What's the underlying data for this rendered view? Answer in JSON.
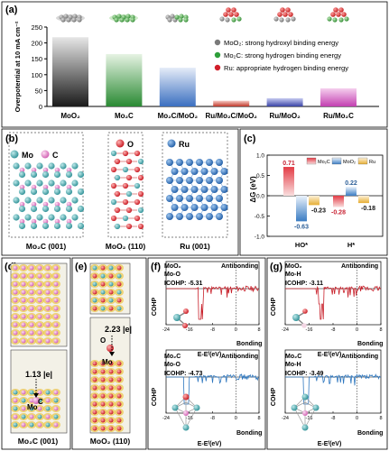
{
  "panel_a": {
    "label": "(a)",
    "ylabel": "Overpotential at 10 mA cm⁻²",
    "yticks": [
      "0",
      "50",
      "100",
      "150",
      "200",
      "250"
    ],
    "legend": [
      {
        "text": "MoO₂: strong hydroxyl binding energy",
        "color": "#7a7a7a"
      },
      {
        "text": "Mo₂C: strong hydrogen binding energy",
        "color": "#2e9e3a"
      },
      {
        "text": "Ru: appropriate hydrogen binding energy",
        "color": "#d11f2a"
      }
    ]
  },
  "chart_data": [
    {
      "type": "bar",
      "categories": [
        "MoO₂",
        "Mo₂C",
        "Mo₂C/MoO₂",
        "Ru/Mo₂C/MoO₂",
        "Ru/MoO₂",
        "Ru/Mo₂C"
      ],
      "values": [
        218,
        165,
        122,
        18,
        26,
        57
      ],
      "ylabel": "Overpotential at 10 mA cm⁻²",
      "ylim": [
        0,
        250
      ],
      "colors": [
        "#1f1f1f",
        "#2f8a35",
        "#3f73c0",
        "#c0392b",
        "#3e47a8",
        "#c744b5"
      ]
    },
    {
      "type": "bar",
      "categories": [
        "HO*",
        "H*"
      ],
      "series": [
        {
          "name": "Mo₂C",
          "values": [
            0.71,
            -0.28
          ],
          "color": "#d32f3a"
        },
        {
          "name": "MoO₂",
          "values": [
            -0.63,
            0.22
          ],
          "color": "#3e80c5"
        },
        {
          "name": "Ru",
          "values": [
            -0.23,
            -0.18
          ],
          "color": "#e9b23a"
        }
      ],
      "ylabel": "ΔG (eV)",
      "yticks": [
        "-1.0",
        "-0.5",
        "0.0",
        "0.5",
        "1.0"
      ],
      "ylim": [
        -1.0,
        1.0
      ]
    }
  ],
  "panel_b": {
    "label": "(b)",
    "legend": [
      {
        "text": "Mo",
        "color": "#3aa3a8"
      },
      {
        "text": "C",
        "color": "#e07cc4"
      },
      {
        "text": "O",
        "color": "#d9272e"
      },
      {
        "text": "Ru",
        "color": "#2a6db4"
      }
    ],
    "structures": [
      "Mo₂C (001)",
      "MoO₂ (110)",
      "Ru (001)"
    ]
  },
  "panel_c": {
    "label": "(c)",
    "ylabel": "ΔG (eV)"
  },
  "panel_d": {
    "label": "(d)",
    "charge": "1.13 |e|",
    "atom_c": "C",
    "atom_mo": "Mo",
    "caption": "Mo₂C (001)"
  },
  "panel_e": {
    "label": "(e)",
    "charge": "2.23 |e|",
    "atom_o": "O",
    "atom_mo": "Mo",
    "caption": "MoO₂ (110)"
  },
  "panel_f": {
    "label": "(f)",
    "top": {
      "line1": "MoO₂",
      "line2": "Mo-O",
      "icohp": "ICOHP: -5.31",
      "antibonding": "Antibonding",
      "bonding": "Bonding"
    },
    "bottom": {
      "line1": "Mo₂C",
      "line2": "Mo-O",
      "icohp": "ICOHP: -4.73",
      "antibonding": "Antibonding",
      "bonding": "Bonding"
    },
    "ylabel": "COHP",
    "xlabel": "E-Eᶠ(eV)",
    "xticks": [
      "-24",
      "-16",
      "-8",
      "0",
      "8"
    ]
  },
  "panel_g": {
    "label": "(g)",
    "top": {
      "line1": "MoO₂",
      "line2": "Mo-H",
      "icohp": "ICOHP: -3.11",
      "antibonding": "Antibonding",
      "bonding": "Bonding"
    },
    "bottom": {
      "line1": "Mo₂C",
      "line2": "Mo-H",
      "icohp": "ICOHP: -3.49",
      "antibonding": "Antibonding",
      "bonding": "Bonding"
    },
    "ylabel": "COHP",
    "xlabel": "E-Eᶠ(eV)",
    "xticks": [
      "-24",
      "-16",
      "-8",
      "0",
      "8"
    ]
  }
}
